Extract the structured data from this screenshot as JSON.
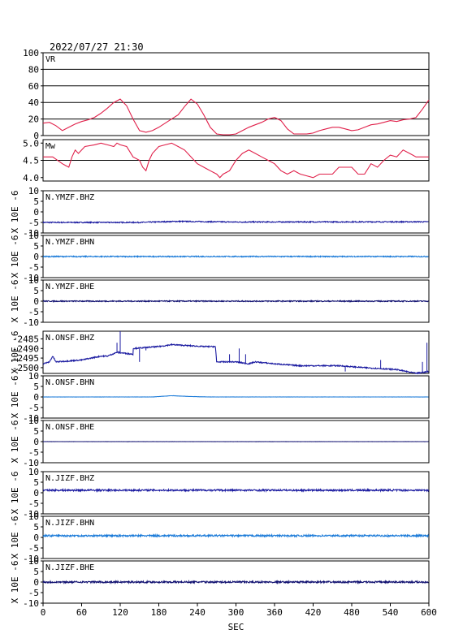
{
  "header": {
    "datetime": "2022/07/27 21:30"
  },
  "colors": {
    "vr": "#e0204a",
    "mw": "#e0204a",
    "dark_blue": "#1a1aa0",
    "light_blue": "#1a7ad8",
    "navy": "#101070",
    "axis": "#000000"
  },
  "chart_data": [
    {
      "type": "line",
      "title": "VR",
      "ylim": [
        0,
        100
      ],
      "yticks": [
        "100",
        "80",
        "60",
        "40",
        "20",
        "0"
      ],
      "grid": true,
      "x": [
        0,
        10,
        20,
        30,
        40,
        50,
        60,
        70,
        80,
        90,
        100,
        110,
        120,
        130,
        140,
        150,
        160,
        170,
        180,
        190,
        200,
        210,
        220,
        230,
        240,
        250,
        260,
        270,
        280,
        290,
        300,
        310,
        320,
        330,
        340,
        350,
        360,
        370,
        380,
        390,
        400,
        410,
        420,
        430,
        440,
        450,
        460,
        470,
        480,
        490,
        500,
        510,
        520,
        530,
        540,
        550,
        560,
        570,
        580,
        590,
        600
      ],
      "values": [
        15,
        16,
        12,
        6,
        10,
        14,
        17,
        19,
        22,
        27,
        33,
        40,
        44,
        36,
        20,
        6,
        4,
        6,
        10,
        15,
        20,
        25,
        35,
        44,
        38,
        25,
        10,
        2,
        1,
        1,
        2,
        6,
        10,
        13,
        16,
        20,
        22,
        18,
        8,
        2,
        2,
        2,
        3,
        6,
        8,
        10,
        10,
        8,
        6,
        7,
        10,
        13,
        14,
        16,
        18,
        17,
        19,
        20,
        22,
        32,
        43
      ],
      "color": "#e0204a"
    },
    {
      "type": "line",
      "title": "Mw",
      "ylim": [
        3.9,
        5.1
      ],
      "yticks": [
        "5.0",
        "4.5",
        "4.0"
      ],
      "grid": true,
      "x": [
        0,
        15,
        30,
        35,
        40,
        45,
        50,
        55,
        60,
        65,
        80,
        90,
        100,
        110,
        115,
        120,
        130,
        140,
        150,
        155,
        160,
        165,
        170,
        180,
        190,
        200,
        210,
        220,
        230,
        240,
        250,
        260,
        270,
        275,
        280,
        290,
        300,
        310,
        320,
        330,
        340,
        350,
        360,
        370,
        380,
        390,
        400,
        410,
        420,
        430,
        440,
        450,
        460,
        470,
        480,
        490,
        500,
        510,
        520,
        530,
        540,
        550,
        560,
        570,
        580,
        600
      ],
      "values": [
        4.6,
        4.6,
        4.4,
        4.35,
        4.3,
        4.6,
        4.8,
        4.7,
        4.8,
        4.9,
        4.95,
        5.0,
        4.95,
        4.9,
        5.0,
        4.95,
        4.9,
        4.6,
        4.5,
        4.3,
        4.2,
        4.5,
        4.7,
        4.9,
        4.95,
        5.0,
        4.9,
        4.8,
        4.6,
        4.4,
        4.3,
        4.2,
        4.1,
        4.0,
        4.1,
        4.2,
        4.5,
        4.7,
        4.8,
        4.7,
        4.6,
        4.5,
        4.4,
        4.2,
        4.1,
        4.2,
        4.1,
        4.05,
        4.0,
        4.1,
        4.1,
        4.1,
        4.3,
        4.3,
        4.3,
        4.1,
        4.1,
        4.4,
        4.3,
        4.5,
        4.65,
        4.6,
        4.8,
        4.7,
        4.6,
        4.6
      ],
      "color": "#e0204a"
    },
    {
      "type": "line",
      "title": "N.YMZF.BHZ",
      "ylabel": "X 10E -6",
      "ylim": [
        -10,
        10
      ],
      "yticks": [
        "10",
        "5",
        "0",
        "-5",
        "-10"
      ],
      "baseline": [
        [
          0,
          -5
        ],
        [
          150,
          -5
        ],
        [
          210,
          -4.5
        ],
        [
          300,
          -4.8
        ],
        [
          600,
          -4.7
        ]
      ],
      "noise": 0.25,
      "color": "#1a1aa0"
    },
    {
      "type": "line",
      "title": "N.YMZF.BHN",
      "ylabel": "X 10E -6",
      "ylim": [
        -10,
        10
      ],
      "yticks": [
        "10",
        "5",
        "0",
        "-5",
        "-10"
      ],
      "baseline": [
        [
          0,
          0
        ],
        [
          600,
          0
        ]
      ],
      "noise": 0.25,
      "color": "#1a7ad8"
    },
    {
      "type": "line",
      "title": "N.YMZF.BHE",
      "ylabel": "X 10E -6",
      "ylim": [
        -10,
        10
      ],
      "yticks": [
        "10",
        "5",
        "0",
        "-5",
        "-10"
      ],
      "baseline": [
        [
          0,
          0
        ],
        [
          600,
          0
        ]
      ],
      "noise": 0.25,
      "color": "#101070"
    },
    {
      "type": "line",
      "title": "N.ONSF.BHZ",
      "ylabel": "X 10E -6",
      "ylim": [
        -2503,
        -2481
      ],
      "yticks": [
        "-2485",
        "-2490",
        "-2495",
        "-2500"
      ],
      "baseline": [
        [
          0,
          -2498
        ],
        [
          10,
          -2497
        ],
        [
          15,
          -2494
        ],
        [
          20,
          -2497
        ],
        [
          60,
          -2496
        ],
        [
          90,
          -2494
        ],
        [
          100,
          -2494
        ],
        [
          115,
          -2492
        ],
        [
          140,
          -2493
        ],
        [
          140,
          -2490
        ],
        [
          180,
          -2489
        ],
        [
          200,
          -2488
        ],
        [
          250,
          -2489
        ],
        [
          268,
          -2489
        ],
        [
          270,
          -2497
        ],
        [
          300,
          -2497
        ],
        [
          320,
          -2498
        ],
        [
          330,
          -2497
        ],
        [
          360,
          -2498
        ],
        [
          400,
          -2499
        ],
        [
          460,
          -2499
        ],
        [
          500,
          -2500
        ],
        [
          550,
          -2501
        ],
        [
          580,
          -2503
        ],
        [
          600,
          -2502
        ]
      ],
      "noise": 0.3,
      "spikes": [
        [
          115,
          -2487
        ],
        [
          120,
          -2481
        ],
        [
          150,
          -2497
        ],
        [
          160,
          -2491
        ],
        [
          290,
          -2493
        ],
        [
          305,
          -2490
        ],
        [
          315,
          -2493
        ],
        [
          470,
          -2502
        ],
        [
          525,
          -2496
        ],
        [
          590,
          -2497
        ],
        [
          597,
          -2487
        ]
      ],
      "color": "#1a1aa0"
    },
    {
      "type": "line",
      "title": "N.ONSF.BHN",
      "ylabel": "X 10E -6",
      "ylim": [
        -10,
        10
      ],
      "yticks": [
        "10",
        "5",
        "0",
        "-5",
        "-10"
      ],
      "baseline": [
        [
          0,
          0
        ],
        [
          170,
          0
        ],
        [
          200,
          0.6
        ],
        [
          230,
          0.2
        ],
        [
          260,
          0
        ],
        [
          600,
          0
        ]
      ],
      "noise": 0.04,
      "color": "#1a7ad8"
    },
    {
      "type": "line",
      "title": "N.ONSF.BHE",
      "ylabel": "X 10E -6",
      "ylim": [
        -10,
        10
      ],
      "yticks": [
        "10",
        "5",
        "0",
        "-5",
        "-10"
      ],
      "baseline": [
        [
          0,
          0
        ],
        [
          600,
          0
        ]
      ],
      "noise": 0.03,
      "color": "#101070"
    },
    {
      "type": "line",
      "title": "N.JIZF.BHZ",
      "ylabel": "X 10E -6",
      "ylim": [
        -10,
        10
      ],
      "yticks": [
        "10",
        "5",
        "0",
        "-5",
        "-10"
      ],
      "baseline": [
        [
          0,
          1.2
        ],
        [
          600,
          1.2
        ]
      ],
      "noise": 0.4,
      "color": "#1a1aa0"
    },
    {
      "type": "line",
      "title": "N.JIZF.BHN",
      "ylabel": "X 10E -6",
      "ylim": [
        -10,
        10
      ],
      "yticks": [
        "10",
        "5",
        "0",
        "-5",
        "-10"
      ],
      "baseline": [
        [
          0,
          0.8
        ],
        [
          600,
          0.8
        ]
      ],
      "noise": 0.4,
      "color": "#1a7ad8"
    },
    {
      "type": "line",
      "title": "N.JIZF.BHE",
      "ylabel": "X 10E -6",
      "ylim": [
        -10,
        10
      ],
      "yticks": [
        "10",
        "5",
        "0",
        "-5",
        "-10"
      ],
      "baseline": [
        [
          0,
          0
        ],
        [
          600,
          0
        ]
      ],
      "noise": 0.4,
      "color": "#101070"
    }
  ],
  "xaxis": {
    "label": "SEC",
    "ticks": [
      0,
      60,
      120,
      180,
      240,
      300,
      360,
      420,
      480,
      540,
      600
    ],
    "xlim": [
      0,
      600
    ]
  }
}
